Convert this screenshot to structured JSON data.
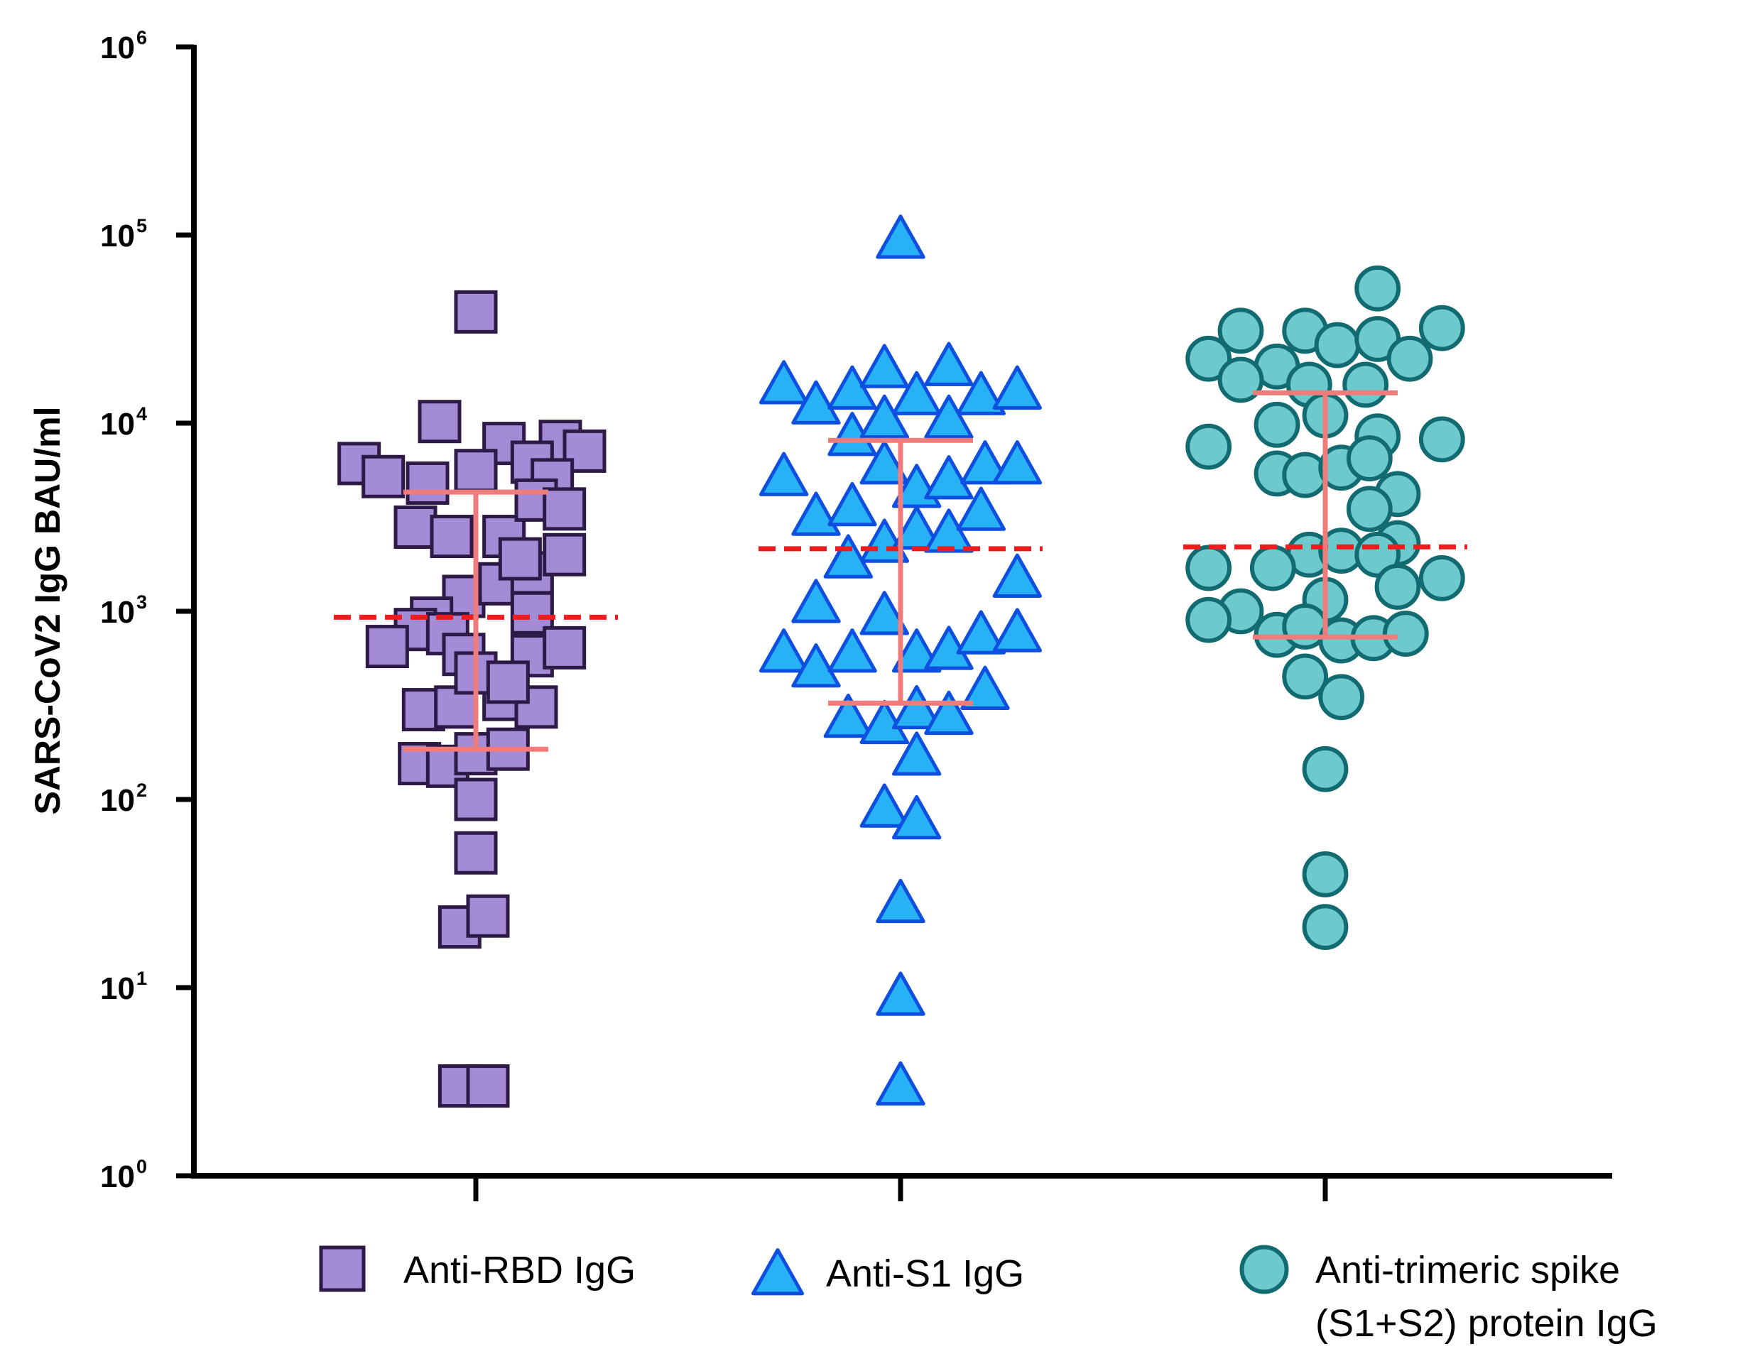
{
  "chart_data": {
    "type": "scatter",
    "title": "",
    "xlabel": "",
    "ylabel": "SARS-CoV2 IgG BAU/ml",
    "yscale": "log",
    "ylim": [
      1,
      1000000
    ],
    "yticks": [
      {
        "base": "10",
        "exp": "0"
      },
      {
        "base": "10",
        "exp": "1"
      },
      {
        "base": "10",
        "exp": "2"
      },
      {
        "base": "10",
        "exp": "3"
      },
      {
        "base": "10",
        "exp": "4"
      },
      {
        "base": "10",
        "exp": "5"
      },
      {
        "base": "10",
        "exp": "6"
      }
    ],
    "legend_position": "bottom",
    "summary_color": "#f07b7b",
    "mean_line_color": "#ee1c1c",
    "series": [
      {
        "name": "Anti-RBD IgG",
        "marker": "square",
        "fill": "#a48bd6",
        "stroke": "#2e1a47",
        "center": 0,
        "mean": 930,
        "range": [
          185,
          4300
        ],
        "points": [
          [
            0,
            39000
          ],
          [
            -0.09,
            10200
          ],
          [
            0.07,
            7800
          ],
          [
            0.21,
            8000
          ],
          [
            0.27,
            7100
          ],
          [
            -0.29,
            6100
          ],
          [
            -0.23,
            5200
          ],
          [
            -0.12,
            4800
          ],
          [
            0.0,
            5600
          ],
          [
            0.14,
            6200
          ],
          [
            0.19,
            5000
          ],
          [
            -0.15,
            2800
          ],
          [
            -0.06,
            2500
          ],
          [
            0.07,
            2500
          ],
          [
            0.15,
            3900
          ],
          [
            0.22,
            3500
          ],
          [
            -0.03,
            1200
          ],
          [
            0.06,
            1400
          ],
          [
            0.14,
            1600
          ],
          [
            0.22,
            2000
          ],
          [
            0.11,
            1900
          ],
          [
            -0.11,
            920
          ],
          [
            -0.15,
            800
          ],
          [
            -0.22,
            650
          ],
          [
            -0.07,
            760
          ],
          [
            0.14,
            980
          ],
          [
            0.14,
            580
          ],
          [
            0.22,
            640
          ],
          [
            -0.03,
            590
          ],
          [
            -0.13,
            300
          ],
          [
            -0.05,
            310
          ],
          [
            0.07,
            340
          ],
          [
            0.15,
            310
          ],
          [
            0.0,
            470
          ],
          [
            0.08,
            420
          ],
          [
            -0.14,
            155
          ],
          [
            -0.07,
            150
          ],
          [
            0.0,
            175
          ],
          [
            0.08,
            185
          ],
          [
            0.0,
            100
          ],
          [
            0.0,
            52
          ],
          [
            -0.04,
            21
          ],
          [
            0.03,
            24
          ],
          [
            -0.04,
            3
          ],
          [
            0.03,
            3
          ]
        ]
      },
      {
        "name": "Anti-S1 IgG",
        "marker": "triangle",
        "fill": "#27b2f5",
        "stroke": "#0f4fe0",
        "center": 1,
        "mean": 2150,
        "range": [
          325,
          8100
        ],
        "points": [
          [
            0,
            95000
          ],
          [
            -0.29,
            16000
          ],
          [
            -0.21,
            12500
          ],
          [
            -0.12,
            15000
          ],
          [
            -0.04,
            19500
          ],
          [
            0.04,
            14000
          ],
          [
            0.12,
            20000
          ],
          [
            0.2,
            14000
          ],
          [
            0.29,
            15000
          ],
          [
            -0.12,
            8500
          ],
          [
            -0.04,
            10500
          ],
          [
            0.12,
            10500
          ],
          [
            -0.29,
            5200
          ],
          [
            -0.04,
            6000
          ],
          [
            0.04,
            4500
          ],
          [
            0.12,
            5000
          ],
          [
            0.21,
            6000
          ],
          [
            0.29,
            6000
          ],
          [
            -0.21,
            3200
          ],
          [
            -0.12,
            3600
          ],
          [
            -0.04,
            2300
          ],
          [
            0.04,
            2700
          ],
          [
            0.12,
            2600
          ],
          [
            0.2,
            3400
          ],
          [
            -0.13,
            1900
          ],
          [
            -0.21,
            1100
          ],
          [
            -0.04,
            950
          ],
          [
            0.29,
            1500
          ],
          [
            -0.29,
            600
          ],
          [
            -0.21,
            500
          ],
          [
            -0.12,
            600
          ],
          [
            0.04,
            600
          ],
          [
            0.12,
            620
          ],
          [
            0.2,
            750
          ],
          [
            0.29,
            770
          ],
          [
            -0.13,
            270
          ],
          [
            -0.04,
            250
          ],
          [
            0.04,
            300
          ],
          [
            0.12,
            280
          ],
          [
            0.21,
            380
          ],
          [
            0.04,
            170
          ],
          [
            -0.04,
            90
          ],
          [
            0.04,
            78
          ],
          [
            0.0,
            28
          ],
          [
            0.0,
            9
          ],
          [
            0.0,
            3
          ]
        ]
      },
      {
        "name": "Anti-trimeric spike (S1+S2) protein IgG",
        "marker": "circle",
        "fill": "#6cc9cc",
        "stroke": "#136b72",
        "center": 2,
        "mean": 2200,
        "range": [
          730,
          14500
        ],
        "points": [
          [
            0.13,
            52000
          ],
          [
            -0.21,
            31000
          ],
          [
            -0.05,
            31000
          ],
          [
            0.03,
            26000
          ],
          [
            0.13,
            28000
          ],
          [
            0.29,
            32000
          ],
          [
            -0.29,
            22000
          ],
          [
            -0.12,
            20000
          ],
          [
            -0.21,
            17000
          ],
          [
            -0.04,
            16000
          ],
          [
            0.1,
            16000
          ],
          [
            0.21,
            22000
          ],
          [
            -0.12,
            9800
          ],
          [
            0.0,
            11000
          ],
          [
            0.13,
            8500
          ],
          [
            0.29,
            8200
          ],
          [
            -0.29,
            7500
          ],
          [
            -0.12,
            5400
          ],
          [
            -0.05,
            5300
          ],
          [
            0.04,
            5800
          ],
          [
            0.11,
            6500
          ],
          [
            0.18,
            4200
          ],
          [
            0.11,
            3500
          ],
          [
            0.18,
            2300
          ],
          [
            -0.04,
            2000
          ],
          [
            0.04,
            2100
          ],
          [
            0.13,
            2000
          ],
          [
            -0.29,
            1700
          ],
          [
            -0.13,
            1700
          ],
          [
            0.18,
            1350
          ],
          [
            0.29,
            1500
          ],
          [
            0.0,
            1150
          ],
          [
            -0.21,
            1000
          ],
          [
            -0.29,
            900
          ],
          [
            -0.12,
            750
          ],
          [
            -0.05,
            830
          ],
          [
            0.04,
            700
          ],
          [
            0.12,
            720
          ],
          [
            0.2,
            760
          ],
          [
            -0.05,
            450
          ],
          [
            0.04,
            350
          ],
          [
            0.0,
            145
          ],
          [
            0.0,
            40
          ],
          [
            0.0,
            21
          ]
        ]
      }
    ]
  }
}
